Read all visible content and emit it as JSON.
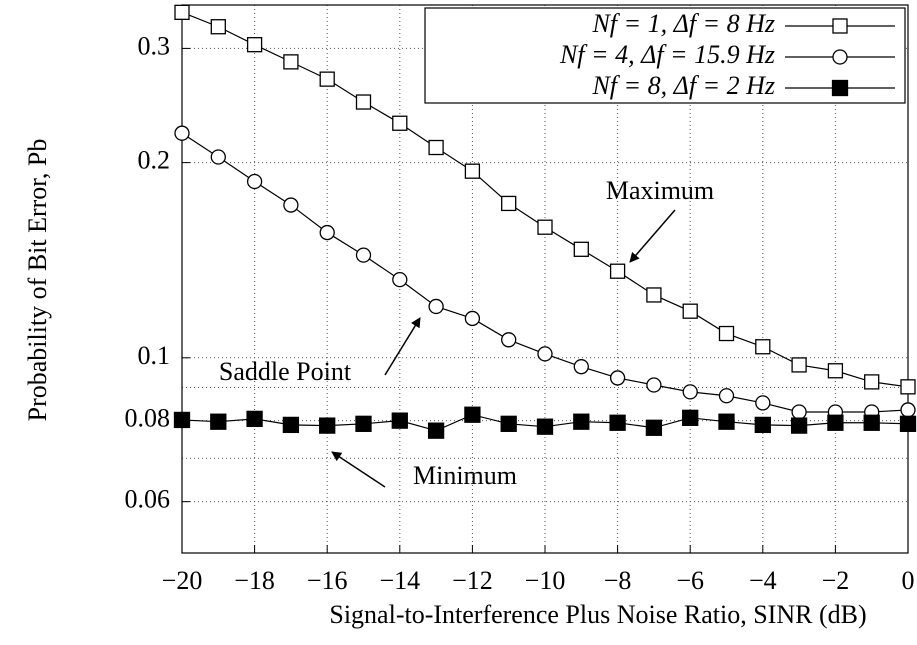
{
  "chart_data": {
    "type": "line",
    "x_label": "Signal-to-Interference Plus Noise Ratio, SINR (dB)",
    "y_label": "Probability of Bit Error, Pb",
    "x": [
      -20,
      -19,
      -18,
      -17,
      -16,
      -15,
      -14,
      -13,
      -12,
      -11,
      -10,
      -9,
      -8,
      -7,
      -6,
      -5,
      -4,
      -3,
      -2,
      -1,
      0
    ],
    "series": [
      {
        "name": "Nf = 1, Δf = 8 Hz",
        "color": "#000000",
        "marker": "square-open",
        "values": [
          0.341,
          0.324,
          0.304,
          0.286,
          0.269,
          0.248,
          0.23,
          0.211,
          0.194,
          0.173,
          0.159,
          0.147,
          0.136,
          0.125,
          0.118,
          0.109,
          0.104,
          0.0975,
          0.0955,
          0.0918,
          0.0902
        ]
      },
      {
        "name": "Nf = 4, Δf = 15.9 Hz",
        "color": "#000000",
        "marker": "circle-open",
        "values": [
          0.222,
          0.204,
          0.187,
          0.172,
          0.156,
          0.144,
          0.132,
          0.12,
          0.115,
          0.1066,
          0.1014,
          0.0969,
          0.0931,
          0.0908,
          0.0886,
          0.0874,
          0.0852,
          0.0825,
          0.0825,
          0.0825,
          0.0831
        ]
      },
      {
        "name": "Nf = 8, Δf = 2 Hz",
        "color": "#000000",
        "marker": "square-filled",
        "values": [
          0.0802,
          0.0797,
          0.0805,
          0.0788,
          0.0786,
          0.0791,
          0.08,
          0.0772,
          0.0817,
          0.0791,
          0.0783,
          0.0797,
          0.0794,
          0.078,
          0.0808,
          0.0797,
          0.0788,
          0.0786,
          0.0794,
          0.0794,
          0.0791
        ]
      }
    ],
    "xlim": [
      -20,
      0
    ],
    "xticks": [
      {
        "value": -20,
        "label": "−20"
      },
      {
        "value": -18,
        "label": "−18"
      },
      {
        "value": -16,
        "label": "−16"
      },
      {
        "value": -14,
        "label": "−14"
      },
      {
        "value": -12,
        "label": "−12"
      },
      {
        "value": -10,
        "label": "−10"
      },
      {
        "value": -8,
        "label": "−8"
      },
      {
        "value": -6,
        "label": "−6"
      },
      {
        "value": -4,
        "label": "−4"
      },
      {
        "value": -2,
        "label": "−2"
      },
      0
    ],
    "ylim": [
      0.05,
      0.35
    ],
    "yticks": [
      0.06,
      0.08,
      0.1,
      0.2,
      0.3
    ],
    "y_minor_grid": [
      0.07,
      0.09
    ],
    "y_scale": "log",
    "grid": true,
    "legend_position": "top-right",
    "annotations": [
      {
        "text": "Maximum"
      },
      {
        "text": "Saddle Point"
      },
      {
        "text": "Minimum"
      }
    ]
  }
}
